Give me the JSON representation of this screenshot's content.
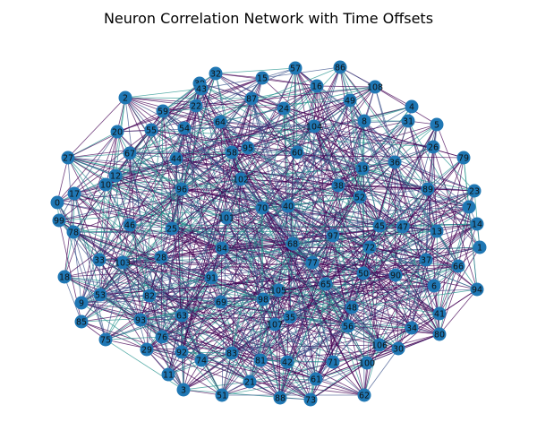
{
  "title": "Neuron Correlation Network with Time Offsets",
  "colors": {
    "node": "#1f77b4",
    "edge_a": "#440154",
    "edge_b": "#3b528b",
    "edge_c": "#21918c"
  },
  "nodes": [
    "0",
    "1",
    "2",
    "3",
    "4",
    "5",
    "6",
    "7",
    "8",
    "9",
    "10",
    "11",
    "12",
    "13",
    "14",
    "15",
    "16",
    "17",
    "18",
    "19",
    "20",
    "21",
    "22",
    "23",
    "24",
    "25",
    "26",
    "27",
    "28",
    "29",
    "30",
    "31",
    "32",
    "33",
    "34",
    "35",
    "36",
    "37",
    "38",
    "39",
    "40",
    "41",
    "42",
    "43",
    "44",
    "45",
    "46",
    "47",
    "48",
    "49",
    "50",
    "51",
    "52",
    "53",
    "54",
    "55",
    "56",
    "57",
    "58",
    "59",
    "60",
    "61",
    "62",
    "63",
    "64",
    "65",
    "66",
    "67",
    "68",
    "69",
    "70",
    "71",
    "72",
    "73",
    "74",
    "75",
    "76",
    "77",
    "78",
    "79",
    "80",
    "81",
    "82",
    "83",
    "84",
    "85",
    "86",
    "87",
    "88",
    "89",
    "90",
    "91",
    "92",
    "93",
    "94",
    "95",
    "96",
    "97",
    "98",
    "99",
    "100",
    "101",
    "102",
    "103",
    "104",
    "105",
    "106",
    "107",
    "108"
  ]
}
